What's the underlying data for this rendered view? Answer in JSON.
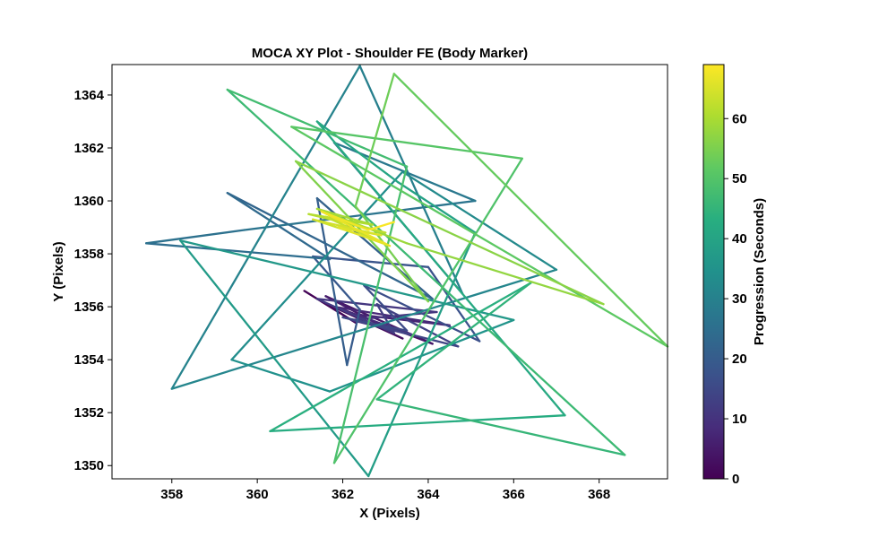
{
  "chart_data": {
    "type": "line",
    "title": "MOCA XY Plot - Shoulder FE (Body Marker)",
    "xlabel": "X (Pixels)",
    "ylabel": "Y (Pixels)",
    "xlim": [
      356.6,
      369.6
    ],
    "ylim": [
      1349.5,
      1365.15
    ],
    "x_ticks": [
      358,
      360,
      362,
      364,
      366,
      368
    ],
    "x_tick_labels": [
      "358",
      "360",
      "362",
      "364",
      "366",
      "368"
    ],
    "y_ticks": [
      1350,
      1352,
      1354,
      1356,
      1358,
      1360,
      1362,
      1364
    ],
    "y_tick_labels": [
      "1350",
      "1352",
      "1354",
      "1356",
      "1358",
      "1360",
      "1362",
      "1364"
    ],
    "grid": false,
    "colorbar": {
      "label": "Progression (Seconds)",
      "range": [
        0,
        69
      ],
      "ticks": [
        0,
        10,
        20,
        30,
        40,
        50,
        60
      ],
      "tick_labels": [
        "0",
        "10",
        "20",
        "30",
        "40",
        "50",
        "60"
      ],
      "colormap": "viridis"
    },
    "series": [
      {
        "t": [
          0,
          0.8,
          1.6,
          2.4,
          3.2,
          4,
          4.8,
          5.6,
          6.4,
          7.2,
          8,
          8.8,
          9.6,
          10.4,
          11.2,
          12,
          12.8,
          13.6,
          14.4,
          15.2,
          16,
          16.8,
          17.6,
          18.4,
          19.2,
          20,
          21,
          22,
          23,
          24,
          25,
          26,
          27,
          28,
          29,
          30,
          31,
          32,
          33,
          34,
          35,
          36,
          37,
          38,
          39,
          40,
          41,
          42,
          43,
          44,
          45,
          46,
          47,
          48,
          49,
          50,
          51,
          52,
          53,
          54,
          55,
          56,
          57,
          58,
          59,
          60,
          60.8,
          61.6,
          62.4,
          63.2,
          64,
          64.8,
          65.6,
          66.4,
          67.2,
          68,
          69
        ],
        "x": [
          361.1,
          362.3,
          361.5,
          363.4,
          362.0,
          364.1,
          361.6,
          363.0,
          362.4,
          364.5,
          361.8,
          363.7,
          362.2,
          364.2,
          361.4,
          363.2,
          362.8,
          364.7,
          362.0,
          363.5,
          362.5,
          365.2,
          364.0,
          361.3,
          362.4,
          362.1,
          361.4,
          364.1,
          359.3,
          361.7,
          357.4,
          359.7,
          365.1,
          361.8,
          364.8,
          362.4,
          358.0,
          367.0,
          363.4,
          359.4,
          361.7,
          366.0,
          358.2,
          362.6,
          365.1,
          363.3,
          361.4,
          367.2,
          360.3,
          366.4,
          362.8,
          368.6,
          359.3,
          363.5,
          361.8,
          366.2,
          360.8,
          369.6,
          363.2,
          362.3,
          364.0,
          360.9,
          368.1,
          363.5,
          361.4,
          362.7,
          361.2,
          363.0,
          361.6,
          362.8,
          361.3,
          362.9,
          361.9,
          363.1,
          361.5,
          362.6,
          363.2
        ],
        "y": [
          1356.6,
          1355.4,
          1356.2,
          1354.8,
          1355.9,
          1354.6,
          1356.4,
          1355.2,
          1355.7,
          1355.3,
          1356.0,
          1354.9,
          1355.5,
          1355.8,
          1356.3,
          1355.0,
          1356.1,
          1354.5,
          1355.6,
          1355.1,
          1356.8,
          1354.7,
          1357.5,
          1357.9,
          1355.9,
          1353.8,
          1360.1,
          1356.3,
          1360.3,
          1357.8,
          1358.4,
          1358.9,
          1360.0,
          1362.2,
          1356.5,
          1365.1,
          1352.9,
          1357.4,
          1361.1,
          1354.0,
          1352.8,
          1355.5,
          1358.5,
          1349.6,
          1358.8,
          1360.7,
          1363.0,
          1351.9,
          1351.3,
          1356.9,
          1352.5,
          1350.4,
          1364.2,
          1361.3,
          1350.1,
          1361.6,
          1362.8,
          1354.5,
          1364.8,
          1359.8,
          1356.2,
          1361.5,
          1356.1,
          1358.4,
          1359.7,
          1359.1,
          1359.5,
          1358.8,
          1359.4,
          1358.5,
          1359.3,
          1358.7,
          1359.0,
          1358.3,
          1359.6,
          1358.9,
          1359.2
        ]
      }
    ]
  }
}
